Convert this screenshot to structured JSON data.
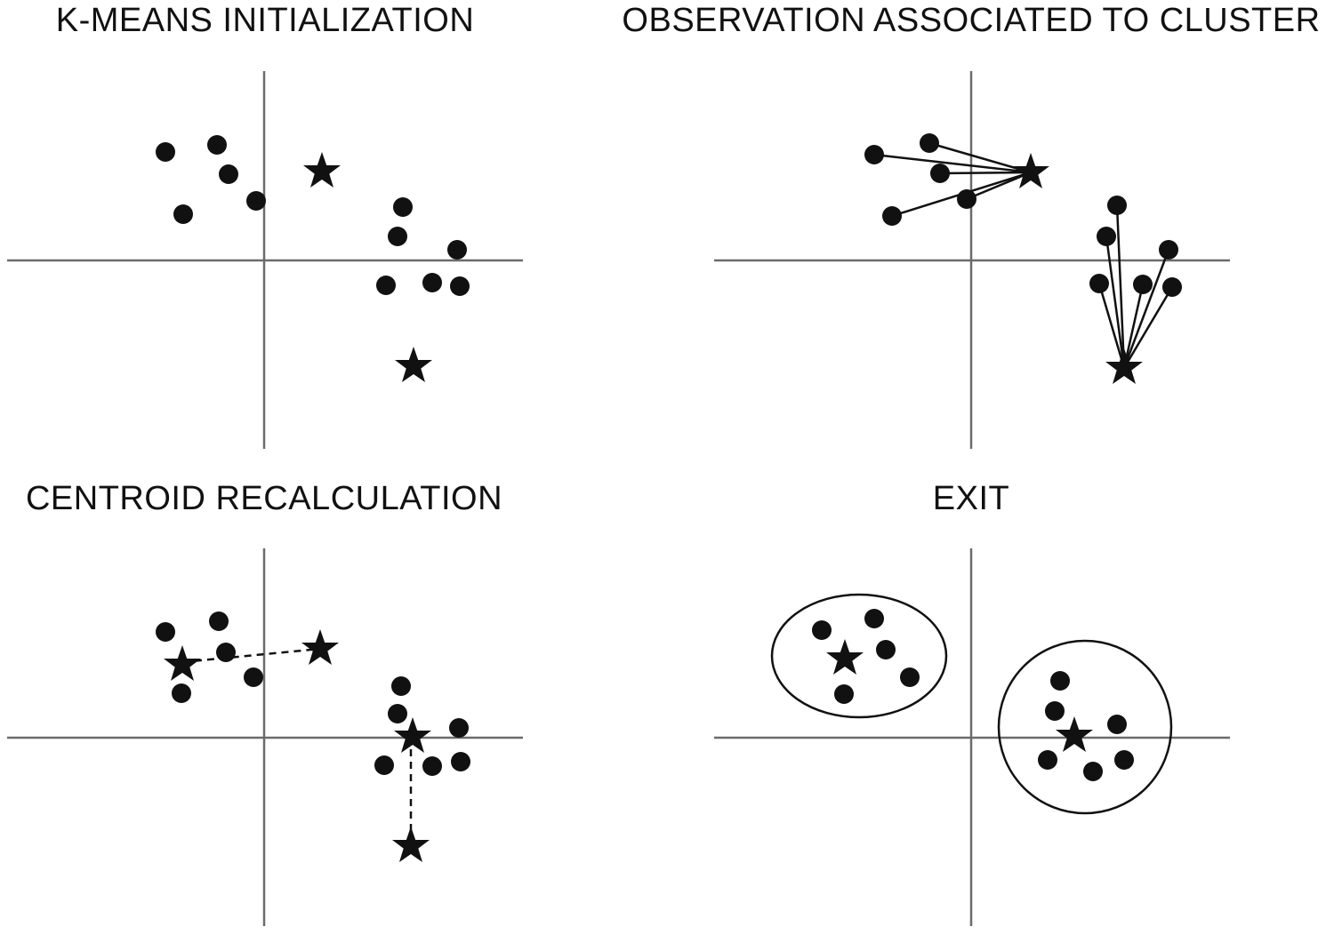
{
  "panels": [
    {
      "id": "p1",
      "title": "K-MEANS INITIALIZATION"
    },
    {
      "id": "p2",
      "title": "OBSERVATION ASSOCIATED TO CLUSTER"
    },
    {
      "id": "p3",
      "title": "CENTROID RECALCULATION"
    },
    {
      "id": "p4",
      "title": "EXIT"
    }
  ],
  "style": {
    "ink": "#111111",
    "axis": "#6b6b6b"
  }
}
